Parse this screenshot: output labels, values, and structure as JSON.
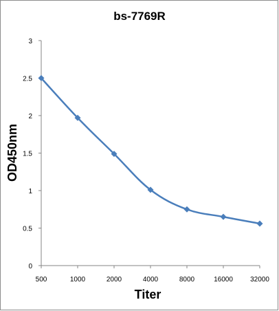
{
  "chart_data": {
    "type": "line",
    "title": "bs-7769R",
    "xlabel": "Titer",
    "ylabel": "OD450nm",
    "categories": [
      "500",
      "1000",
      "2000",
      "4000",
      "8000",
      "16000",
      "32000"
    ],
    "series": [
      {
        "values": [
          2.5,
          1.97,
          1.49,
          1.01,
          0.75,
          0.65,
          0.56
        ]
      }
    ],
    "y_ticks": [
      "0",
      "0.5",
      "1",
      "1.5",
      "2",
      "2.5",
      "3"
    ],
    "ylim": [
      0,
      3
    ],
    "grid": false,
    "legend": false,
    "marker": "diamond",
    "smooth": true,
    "colors": {
      "series": "#4a7ebb",
      "axis": "#868686"
    }
  }
}
